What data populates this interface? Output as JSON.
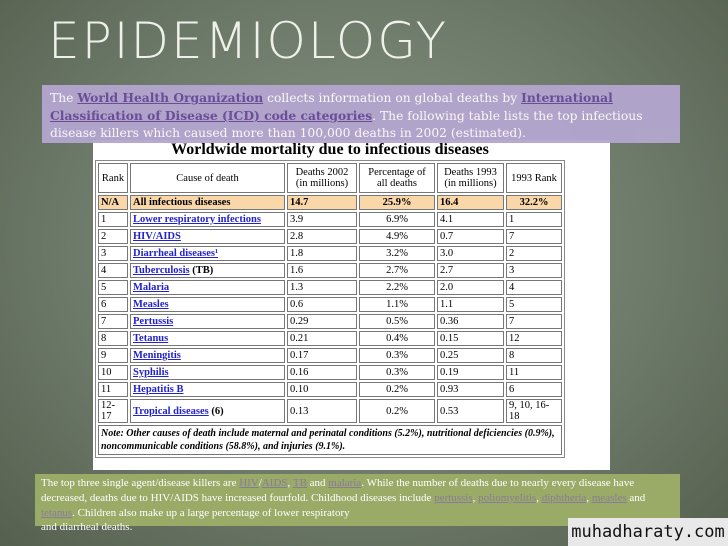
{
  "title": "EPIDEMIOLOGY",
  "intro": {
    "t1": "The ",
    "link1": "World Health Organization",
    "t2": " collects information on global deaths by ",
    "link2": "International Classification of Disease (ICD) code categories",
    "t3": ". The following table lists the top infectious disease killers which caused more than 100,000 deaths in 2002 (estimated)."
  },
  "table": {
    "title": "Worldwide mortality due to infectious diseases",
    "headers": [
      "Rank",
      "Cause of death",
      "Deaths 2002 (in millions)",
      "Percentage of all deaths",
      "Deaths 1993 (in millions)",
      "1993 Rank"
    ],
    "rows": [
      [
        "N/A",
        "All infectious diseases",
        "14.7",
        "25.9%",
        "16.4",
        "32.2%"
      ],
      [
        "1",
        "Lower respiratory infections",
        "3.9",
        "6.9%",
        "4.1",
        "1"
      ],
      [
        "2",
        "HIV/AIDS",
        "2.8",
        "4.9%",
        "0.7",
        "7"
      ],
      [
        "3",
        "Diarrheal diseases¹",
        "1.8",
        "3.2%",
        "3.0",
        "2"
      ],
      [
        "4",
        "Tuberculosis",
        "1.6",
        "2.7%",
        "2.7",
        "3"
      ],
      [
        "5",
        "Malaria",
        "1.3",
        "2.2%",
        "2.0",
        "4"
      ],
      [
        "6",
        "Measles",
        "0.6",
        "1.1%",
        "1.1",
        "5"
      ],
      [
        "7",
        "Pertussis",
        "0.29",
        "0.5%",
        "0.36",
        "7"
      ],
      [
        "8",
        "Tetanus",
        "0.21",
        "0.4%",
        "0.15",
        "12"
      ],
      [
        "9",
        "Meningitis",
        "0.17",
        "0.3%",
        "0.25",
        "8"
      ],
      [
        "10",
        "Syphilis",
        "0.16",
        "0.3%",
        "0.19",
        "11"
      ],
      [
        "11",
        "Hepatitis B",
        "0.10",
        "0.2%",
        "0.93",
        "6"
      ],
      [
        "12-17",
        "Tropical diseases",
        "0.13",
        "0.2%",
        "0.53",
        "9, 10, 16-18"
      ]
    ],
    "suffix_tb": " (TB)",
    "suffix_trop": " (6)",
    "note": "Note: Other causes of death include maternal and perinatal conditions (5.2%), nutritional deficiencies (0.9%), noncommunicable conditions (58.8%), and injuries (9.1%)."
  },
  "summary": {
    "t1": "The top three single agent/disease killers are ",
    "hiv": "HIV",
    "aids": "AIDS",
    "tb": "TB",
    "and": " and ",
    "malaria": "malaria",
    "t2": ". While the number of deaths due to nearly every disease have decreased, deaths due to HIV/AIDS have increased fourfold. Childhood diseases include ",
    "pertussis": "pertussis",
    "polio": "poliomyelitis",
    "diph": "diphtheria",
    "measles": "measles",
    "tetanus": "tetanus",
    "t3": ". Children also make up a large percentage of lower respiratory",
    "last": "and diarrheal deaths."
  },
  "watermark": "muhadharaty.com"
}
